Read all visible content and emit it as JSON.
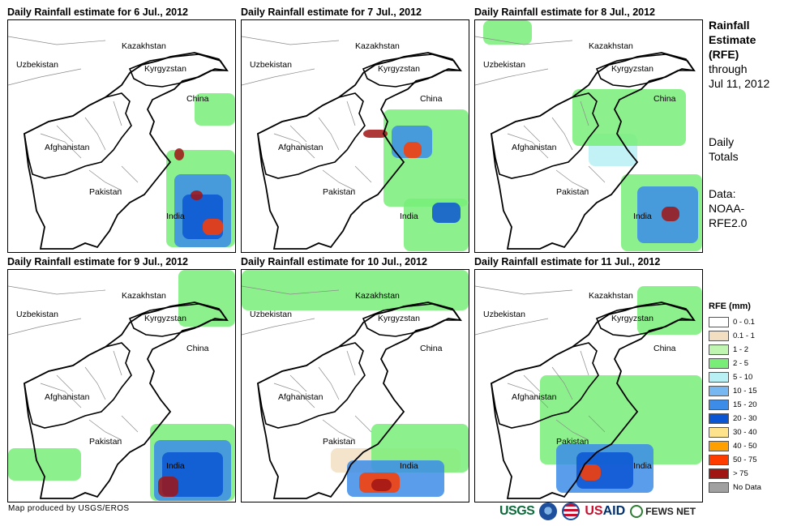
{
  "panels": [
    {
      "title": "Daily Rainfall estimate for 6 Jul., 2012"
    },
    {
      "title": "Daily Rainfall estimate for 7 Jul., 2012"
    },
    {
      "title": "Daily Rainfall estimate for 8 Jul., 2012"
    },
    {
      "title": "Daily Rainfall estimate for 9 Jul., 2012"
    },
    {
      "title": "Daily Rainfall estimate for 10 Jul., 2012"
    },
    {
      "title": "Daily Rainfall estimate for 11 Jul., 2012"
    }
  ],
  "map_labels": {
    "kazakhstan": "Kazakhstan",
    "uzbekistan": "Uzbekistan",
    "kyrgyzstan": "Kyrgyzstan",
    "china": "China",
    "afghanistan": "Afghanistan",
    "pakistan": "Pakistan",
    "india": "India"
  },
  "sidebar": {
    "title_line1": "Rainfall",
    "title_line2": "Estimate",
    "title_line3": "(RFE)",
    "through_line1": "through",
    "through_line2": "Jul 11, 2012",
    "totals_line1": "Daily",
    "totals_line2": "Totals",
    "data_line1": "Data:",
    "data_line2": "NOAA-",
    "data_line3": "RFE2.0"
  },
  "legend": {
    "title": "RFE (mm)",
    "items": [
      {
        "label": "0 - 0.1",
        "color": "#ffffff"
      },
      {
        "label": "0.1 - 1",
        "color": "#f2dfc2"
      },
      {
        "label": "1 - 2",
        "color": "#bff5b0"
      },
      {
        "label": "2 - 5",
        "color": "#78ee78"
      },
      {
        "label": "5 - 10",
        "color": "#b8f0f5"
      },
      {
        "label": "10 - 15",
        "color": "#78b8f2"
      },
      {
        "label": "15 - 20",
        "color": "#3c8ce8"
      },
      {
        "label": "20 - 30",
        "color": "#0a55d2"
      },
      {
        "label": "30 - 40",
        "color": "#ffe38c"
      },
      {
        "label": "40 - 50",
        "color": "#ffa000"
      },
      {
        "label": "50 - 75",
        "color": "#ff3c00"
      },
      {
        "label": "> 75",
        "color": "#a01414"
      },
      {
        "label": "No Data",
        "color": "#a0a0a0"
      }
    ]
  },
  "footer": {
    "credit": "Map produced by USGS/EROS"
  },
  "logos": {
    "usgs": "USGS",
    "usaid_a": "US",
    "usaid_b": "AID",
    "fews": "FEWS NET"
  },
  "rain_patterns": [
    [
      {
        "c": "#78ee78",
        "x": 195,
        "y": 160,
        "w": 85,
        "h": 120
      },
      {
        "c": "#3c8ce8",
        "x": 205,
        "y": 190,
        "w": 70,
        "h": 90
      },
      {
        "c": "#0a55d2",
        "x": 215,
        "y": 215,
        "w": 50,
        "h": 55
      },
      {
        "c": "#ff3c00",
        "x": 240,
        "y": 245,
        "w": 25,
        "h": 20
      },
      {
        "c": "#a01414",
        "x": 225,
        "y": 210,
        "w": 15,
        "h": 12
      },
      {
        "c": "#a01414",
        "x": 205,
        "y": 158,
        "w": 12,
        "h": 15
      },
      {
        "c": "#78ee78",
        "x": 230,
        "y": 90,
        "w": 50,
        "h": 40
      }
    ],
    [
      {
        "c": "#78ee78",
        "x": 175,
        "y": 110,
        "w": 105,
        "h": 120
      },
      {
        "c": "#3c8ce8",
        "x": 185,
        "y": 130,
        "w": 50,
        "h": 40
      },
      {
        "c": "#ff3c00",
        "x": 200,
        "y": 150,
        "w": 22,
        "h": 20
      },
      {
        "c": "#a01414",
        "x": 150,
        "y": 135,
        "w": 30,
        "h": 10
      },
      {
        "c": "#78ee78",
        "x": 200,
        "y": 220,
        "w": 80,
        "h": 65
      },
      {
        "c": "#0a55d2",
        "x": 235,
        "y": 225,
        "w": 35,
        "h": 25
      }
    ],
    [
      {
        "c": "#b8f0f5",
        "x": 140,
        "y": 140,
        "w": 60,
        "h": 40
      },
      {
        "c": "#78ee78",
        "x": 120,
        "y": 85,
        "w": 140,
        "h": 70
      },
      {
        "c": "#78ee78",
        "x": 180,
        "y": 190,
        "w": 100,
        "h": 95
      },
      {
        "c": "#3c8ce8",
        "x": 200,
        "y": 205,
        "w": 75,
        "h": 70
      },
      {
        "c": "#a01414",
        "x": 230,
        "y": 230,
        "w": 22,
        "h": 18
      },
      {
        "c": "#78ee78",
        "x": 10,
        "y": 0,
        "w": 60,
        "h": 30
      }
    ],
    [
      {
        "c": "#78ee78",
        "x": 175,
        "y": 190,
        "w": 105,
        "h": 95
      },
      {
        "c": "#3c8ce8",
        "x": 180,
        "y": 210,
        "w": 95,
        "h": 75
      },
      {
        "c": "#0a55d2",
        "x": 190,
        "y": 225,
        "w": 75,
        "h": 55
      },
      {
        "c": "#a01414",
        "x": 185,
        "y": 255,
        "w": 25,
        "h": 25
      },
      {
        "c": "#78ee78",
        "x": 0,
        "y": 220,
        "w": 90,
        "h": 40
      },
      {
        "c": "#78ee78",
        "x": 210,
        "y": 0,
        "w": 70,
        "h": 70
      }
    ],
    [
      {
        "c": "#78ee78",
        "x": 0,
        "y": 0,
        "w": 280,
        "h": 50
      },
      {
        "c": "#f2dfc2",
        "x": 110,
        "y": 220,
        "w": 160,
        "h": 30
      },
      {
        "c": "#78ee78",
        "x": 160,
        "y": 190,
        "w": 120,
        "h": 60
      },
      {
        "c": "#3c8ce8",
        "x": 130,
        "y": 235,
        "w": 120,
        "h": 45
      },
      {
        "c": "#ff3c00",
        "x": 145,
        "y": 250,
        "w": 50,
        "h": 25
      },
      {
        "c": "#a01414",
        "x": 160,
        "y": 258,
        "w": 25,
        "h": 15
      }
    ],
    [
      {
        "c": "#78ee78",
        "x": 80,
        "y": 130,
        "w": 200,
        "h": 110
      },
      {
        "c": "#3c8ce8",
        "x": 100,
        "y": 215,
        "w": 120,
        "h": 60
      },
      {
        "c": "#0a55d2",
        "x": 125,
        "y": 225,
        "w": 70,
        "h": 45
      },
      {
        "c": "#ff3c00",
        "x": 130,
        "y": 240,
        "w": 25,
        "h": 20
      },
      {
        "c": "#78ee78",
        "x": 200,
        "y": 20,
        "w": 80,
        "h": 60
      }
    ]
  ]
}
